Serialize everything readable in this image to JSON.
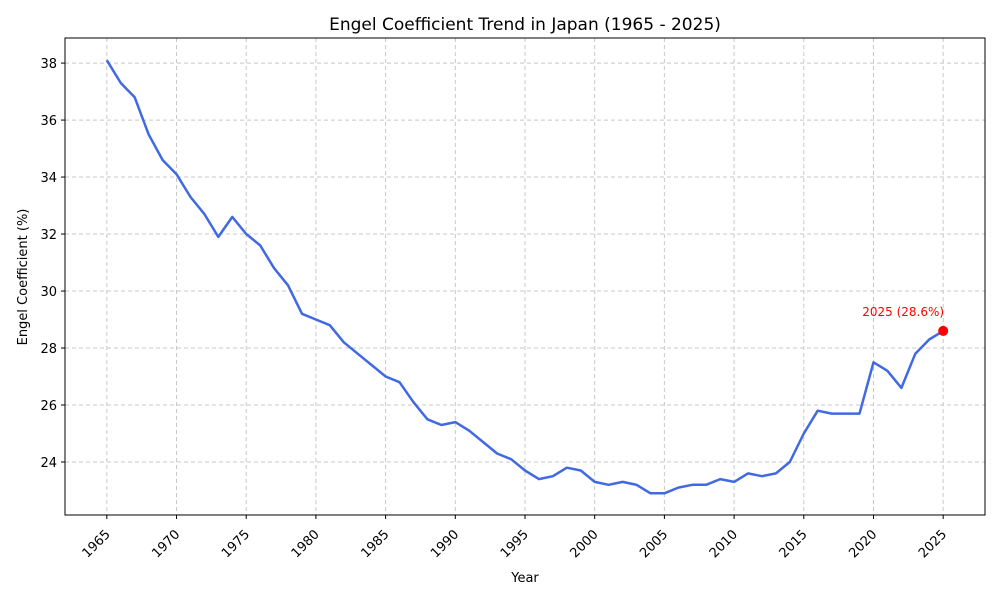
{
  "chart_data": {
    "type": "line",
    "title": "Engel Coefficient Trend in Japan (1965 - 2025)",
    "xlabel": "Year",
    "ylabel": "Engel Coefficient (%)",
    "xlim": [
      1962,
      2028
    ],
    "ylim": [
      22.14,
      38.88
    ],
    "grid": true,
    "xticks": [
      1965,
      1970,
      1975,
      1980,
      1985,
      1990,
      1995,
      2000,
      2005,
      2010,
      2015,
      2020,
      2025
    ],
    "yticks": [
      24,
      26,
      28,
      30,
      32,
      34,
      36,
      38
    ],
    "series": [
      {
        "name": "Engel Coefficient",
        "color": "#4169e1",
        "x": [
          1965,
          1966,
          1967,
          1968,
          1969,
          1970,
          1971,
          1972,
          1973,
          1974,
          1975,
          1976,
          1977,
          1978,
          1979,
          1980,
          1981,
          1982,
          1983,
          1984,
          1985,
          1986,
          1987,
          1988,
          1989,
          1990,
          1991,
          1992,
          1993,
          1994,
          1995,
          1996,
          1997,
          1998,
          1999,
          2000,
          2001,
          2002,
          2003,
          2004,
          2005,
          2006,
          2007,
          2008,
          2009,
          2010,
          2011,
          2012,
          2013,
          2014,
          2015,
          2016,
          2017,
          2018,
          2019,
          2020,
          2021,
          2022,
          2023,
          2024,
          2025
        ],
        "values": [
          38.1,
          37.3,
          36.8,
          35.5,
          34.6,
          34.1,
          33.3,
          32.7,
          31.9,
          32.6,
          32.0,
          31.6,
          30.8,
          30.2,
          29.2,
          29.0,
          28.8,
          28.2,
          27.8,
          27.4,
          27.0,
          26.8,
          26.1,
          25.5,
          25.3,
          25.4,
          25.1,
          24.7,
          24.3,
          24.1,
          23.7,
          23.4,
          23.5,
          23.8,
          23.7,
          23.3,
          23.2,
          23.3,
          23.2,
          22.9,
          22.9,
          23.1,
          23.2,
          23.2,
          23.4,
          23.3,
          23.6,
          23.5,
          23.6,
          24.0,
          25.0,
          25.8,
          25.7,
          25.7,
          25.7,
          27.5,
          27.2,
          26.6,
          27.8,
          28.3,
          28.6
        ]
      }
    ],
    "highlight": {
      "x": 2025,
      "y": 28.6,
      "label": "2025 (28.6%)",
      "color": "#ff0000"
    }
  }
}
